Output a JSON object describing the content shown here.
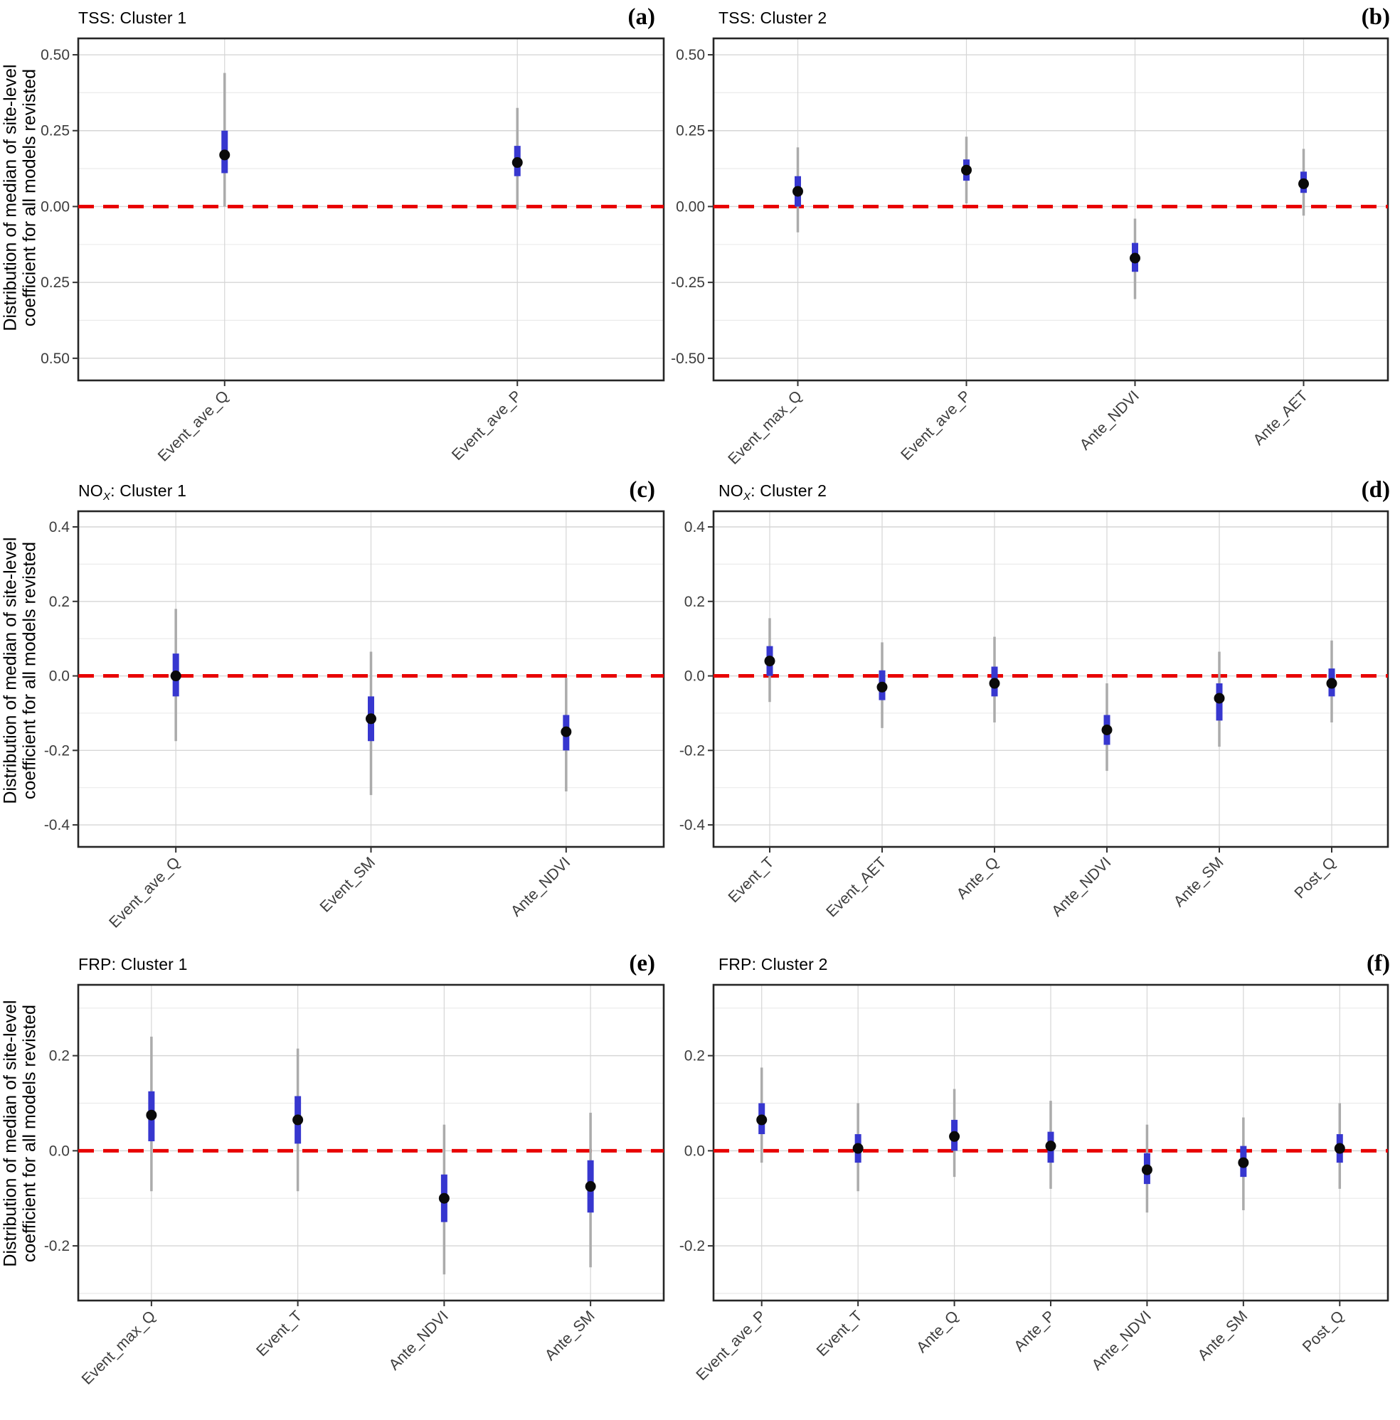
{
  "figure": {
    "ylabel_line1": "Distribution of  median of site-level",
    "ylabel_line2": "coefficient for all models revisted",
    "colors": {
      "iqr_bar": "#3737cf",
      "median_point": "#0a0a0a",
      "whisker": "#ababab",
      "zero_line": "#e80000",
      "grid_major": "#d6d6d6",
      "grid_minor": "#ebebeb",
      "panel_border": "#262626",
      "tick_text": "#3d3d3d",
      "title_text": "#000000"
    }
  },
  "chart_data": [
    {
      "panel": "a",
      "letter": "(a)",
      "type": "pointrange",
      "title": {
        "prefix": "TSS",
        "sub": "",
        "suffix": ": Cluster 1"
      },
      "ylim": [
        -0.573,
        0.554
      ],
      "zero_line": 0,
      "ytick_labels": [
        "0.50",
        "0.25",
        "0.00",
        "-0.25",
        "-0.50"
      ],
      "ytick_values": [
        0.5,
        0.25,
        0,
        -0.25,
        -0.5
      ],
      "minor_gridlines": [
        0.375,
        0.125,
        -0.125,
        -0.375
      ],
      "categories": [
        "Event_ave_Q",
        "Event_ave_P"
      ],
      "points": [
        {
          "category": "Event_ave_Q",
          "whisker_low": 0.0,
          "q1": 0.11,
          "median": 0.17,
          "q3": 0.25,
          "whisker_high": 0.44
        },
        {
          "category": "Event_ave_P",
          "whisker_low": -0.01,
          "q1": 0.1,
          "median": 0.145,
          "q3": 0.2,
          "whisker_high": 0.325
        }
      ]
    },
    {
      "panel": "b",
      "letter": "(b)",
      "type": "pointrange",
      "title": {
        "prefix": "TSS",
        "sub": "",
        "suffix": ": Cluster 2"
      },
      "ylim": [
        -0.573,
        0.554
      ],
      "zero_line": 0,
      "ytick_labels": [
        "0.50",
        "0.25",
        "0.00",
        "-0.25",
        "-0.50"
      ],
      "ytick_values": [
        0.5,
        0.25,
        0,
        -0.25,
        -0.5
      ],
      "minor_gridlines": [
        0.375,
        0.125,
        -0.125,
        -0.375
      ],
      "categories": [
        "Event_max_Q",
        "Event_ave_P",
        "Ante_NDVI",
        "Ante_AET"
      ],
      "points": [
        {
          "category": "Event_max_Q",
          "whisker_low": -0.085,
          "q1": 0.0,
          "median": 0.05,
          "q3": 0.1,
          "whisker_high": 0.195
        },
        {
          "category": "Event_ave_P",
          "whisker_low": 0.01,
          "q1": 0.085,
          "median": 0.12,
          "q3": 0.155,
          "whisker_high": 0.23
        },
        {
          "category": "Ante_NDVI",
          "whisker_low": -0.305,
          "q1": -0.215,
          "median": -0.17,
          "q3": -0.12,
          "whisker_high": -0.04
        },
        {
          "category": "Ante_AET",
          "whisker_low": -0.03,
          "q1": 0.045,
          "median": 0.075,
          "q3": 0.115,
          "whisker_high": 0.19
        }
      ]
    },
    {
      "panel": "c",
      "letter": "(c)",
      "type": "pointrange",
      "title": {
        "prefix": "NO",
        "sub": "X",
        "suffix": ": Cluster 1"
      },
      "ylim": [
        -0.459,
        0.442
      ],
      "zero_line": 0,
      "ytick_labels": [
        "0.4",
        "0.2",
        "0.0",
        "-0.2",
        "-0.4"
      ],
      "ytick_values": [
        0.4,
        0.2,
        0,
        -0.2,
        -0.4
      ],
      "minor_gridlines": [
        0.3,
        0.1,
        -0.1,
        -0.3
      ],
      "categories": [
        "Event_ave_Q",
        "Event_SM",
        "Ante_NDVI"
      ],
      "points": [
        {
          "category": "Event_ave_Q",
          "whisker_low": -0.175,
          "q1": -0.055,
          "median": 0.0,
          "q3": 0.06,
          "whisker_high": 0.18
        },
        {
          "category": "Event_SM",
          "whisker_low": -0.32,
          "q1": -0.175,
          "median": -0.115,
          "q3": -0.055,
          "whisker_high": 0.065
        },
        {
          "category": "Ante_NDVI",
          "whisker_low": -0.31,
          "q1": -0.2,
          "median": -0.15,
          "q3": -0.105,
          "whisker_high": -0.005
        }
      ]
    },
    {
      "panel": "d",
      "letter": "(d)",
      "type": "pointrange",
      "title": {
        "prefix": "NO",
        "sub": "X",
        "suffix": ": Cluster 2"
      },
      "ylim": [
        -0.459,
        0.442
      ],
      "zero_line": 0,
      "ytick_labels": [
        "0.4",
        "0.2",
        "0.0",
        "-0.2",
        "-0.4"
      ],
      "ytick_values": [
        0.4,
        0.2,
        0,
        -0.2,
        -0.4
      ],
      "minor_gridlines": [
        0.3,
        0.1,
        -0.1,
        -0.3
      ],
      "categories": [
        "Event_T",
        "Event_AET",
        "Ante_Q",
        "Ante_NDVI",
        "Ante_SM",
        "Post_Q"
      ],
      "points": [
        {
          "category": "Event_T",
          "whisker_low": -0.07,
          "q1": 0.0,
          "median": 0.04,
          "q3": 0.08,
          "whisker_high": 0.155
        },
        {
          "category": "Event_AET",
          "whisker_low": -0.14,
          "q1": -0.065,
          "median": -0.03,
          "q3": 0.015,
          "whisker_high": 0.09
        },
        {
          "category": "Ante_Q",
          "whisker_low": -0.125,
          "q1": -0.055,
          "median": -0.02,
          "q3": 0.025,
          "whisker_high": 0.105
        },
        {
          "category": "Ante_NDVI",
          "whisker_low": -0.255,
          "q1": -0.185,
          "median": -0.145,
          "q3": -0.105,
          "whisker_high": -0.02
        },
        {
          "category": "Ante_SM",
          "whisker_low": -0.19,
          "q1": -0.12,
          "median": -0.06,
          "q3": -0.02,
          "whisker_high": 0.065
        },
        {
          "category": "Post_Q",
          "whisker_low": -0.125,
          "q1": -0.055,
          "median": -0.02,
          "q3": 0.02,
          "whisker_high": 0.095
        }
      ]
    },
    {
      "panel": "e",
      "letter": "(e)",
      "type": "pointrange",
      "title": {
        "prefix": "FRP",
        "sub": "",
        "suffix": ": Cluster 1"
      },
      "ylim": [
        -0.315,
        0.349
      ],
      "zero_line": 0,
      "ytick_labels": [
        "0.2",
        "0.0",
        "-0.2"
      ],
      "ytick_values": [
        0.2,
        0,
        -0.2
      ],
      "minor_gridlines": [
        0.3,
        0.1,
        -0.1,
        -0.3
      ],
      "categories": [
        "Event_max_Q",
        "Event_T",
        "Ante_NDVI",
        "Ante_SM"
      ],
      "points": [
        {
          "category": "Event_max_Q",
          "whisker_low": -0.085,
          "q1": 0.02,
          "median": 0.075,
          "q3": 0.125,
          "whisker_high": 0.24
        },
        {
          "category": "Event_T",
          "whisker_low": -0.085,
          "q1": 0.015,
          "median": 0.065,
          "q3": 0.115,
          "whisker_high": 0.215
        },
        {
          "category": "Ante_NDVI",
          "whisker_low": -0.26,
          "q1": -0.15,
          "median": -0.1,
          "q3": -0.05,
          "whisker_high": 0.055
        },
        {
          "category": "Ante_SM",
          "whisker_low": -0.245,
          "q1": -0.13,
          "median": -0.075,
          "q3": -0.02,
          "whisker_high": 0.08
        }
      ]
    },
    {
      "panel": "f",
      "letter": "(f)",
      "type": "pointrange",
      "title": {
        "prefix": "FRP",
        "sub": "",
        "suffix": ": Cluster 2"
      },
      "ylim": [
        -0.315,
        0.349
      ],
      "zero_line": 0,
      "ytick_labels": [
        "0.2",
        "0.0",
        "-0.2"
      ],
      "ytick_values": [
        0.2,
        0,
        -0.2
      ],
      "minor_gridlines": [
        0.3,
        0.1,
        -0.1,
        -0.3
      ],
      "categories": [
        "Event_ave_P",
        "Event_T",
        "Ante_Q",
        "Ante_P",
        "Ante_NDVI",
        "Ante_SM",
        "Post_Q"
      ],
      "points": [
        {
          "category": "Event_ave_P",
          "whisker_low": -0.025,
          "q1": 0.035,
          "median": 0.065,
          "q3": 0.1,
          "whisker_high": 0.175
        },
        {
          "category": "Event_T",
          "whisker_low": -0.085,
          "q1": -0.025,
          "median": 0.005,
          "q3": 0.035,
          "whisker_high": 0.1
        },
        {
          "category": "Ante_Q",
          "whisker_low": -0.055,
          "q1": 0.0,
          "median": 0.03,
          "q3": 0.065,
          "whisker_high": 0.13
        },
        {
          "category": "Ante_P",
          "whisker_low": -0.08,
          "q1": -0.025,
          "median": 0.01,
          "q3": 0.04,
          "whisker_high": 0.105
        },
        {
          "category": "Ante_NDVI",
          "whisker_low": -0.13,
          "q1": -0.07,
          "median": -0.04,
          "q3": -0.005,
          "whisker_high": 0.055
        },
        {
          "category": "Ante_SM",
          "whisker_low": -0.125,
          "q1": -0.055,
          "median": -0.025,
          "q3": 0.01,
          "whisker_high": 0.07
        },
        {
          "category": "Post_Q",
          "whisker_low": -0.08,
          "q1": -0.025,
          "median": 0.005,
          "q3": 0.035,
          "whisker_high": 0.1
        }
      ]
    }
  ]
}
